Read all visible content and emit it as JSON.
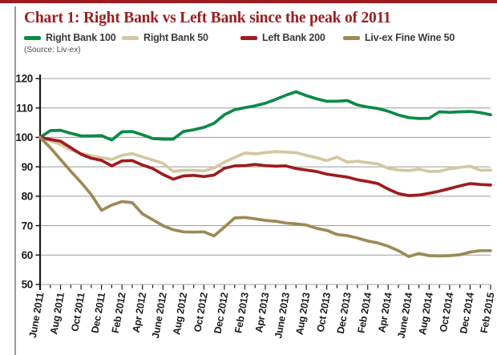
{
  "page": {
    "title_prefix": "Chart 1:",
    "title_rest": " Right Bank vs Left Bank since the peak of 2011",
    "source_note": "(Source: Liv-ex)",
    "accent_color": "#9e1b1f",
    "rule_color": "#9b9b9b",
    "background_color": "#ffffff"
  },
  "legend": {
    "items": [
      {
        "label": "Right Bank 100",
        "color": "#0b8a47"
      },
      {
        "label": "Right Bank 50",
        "color": "#d4c7a2"
      },
      {
        "label": "Left Bank 200",
        "color": "#9e1b1f"
      },
      {
        "label": "Liv-ex Fine Wine 50",
        "color": "#9c8a57"
      }
    ]
  },
  "chart_data": {
    "type": "line",
    "title": "Chart 1: Right Bank vs Left Bank since the peak of 2011",
    "xlabel": "",
    "ylabel": "",
    "ylim": [
      50,
      120
    ],
    "ytick_interval": 10,
    "y_tick_labels": [
      "120",
      "110",
      "100",
      "90",
      "80",
      "70",
      "60",
      "50"
    ],
    "grid": true,
    "legend_position": "top",
    "x_months_total": 45,
    "x_tick_every_months": 2,
    "x_tick_labels": [
      "June 2011",
      "Aug 2011",
      "Oct 2011",
      "Dec 2011",
      "Feb 2012",
      "Apr 2012",
      "June 2012",
      "Aug 2012",
      "Oct 2012",
      "Dec 2012",
      "Feb 2013",
      "Apr 2013",
      "June 2013",
      "Aug 2013",
      "Oct 2013",
      "Dec 2013",
      "Feb 2014",
      "Apr 2014",
      "June 2014",
      "Aug 2014",
      "Oct 2014",
      "Dec 2014",
      "Feb 2015"
    ],
    "grid_color": "#a6a6a6",
    "axis_color": "#1a1a1a",
    "series": [
      {
        "name": "Right Bank 100",
        "color": "#0b8a47",
        "values": [
          100,
          102.3,
          102.4,
          101.4,
          100.5,
          100.5,
          100.6,
          99.1,
          101.9,
          102.0,
          100.9,
          99.6,
          99.4,
          99.4,
          102.0,
          102.6,
          103.4,
          104.8,
          107.7,
          109.4,
          110.1,
          110.7,
          111.6,
          112.9,
          114.3,
          115.5,
          114.2,
          113.1,
          112.3,
          112.3,
          112.5,
          111.0,
          110.3,
          109.8,
          108.9,
          107.6,
          106.7,
          106.4,
          106.5,
          108.7,
          108.5,
          108.7,
          108.8,
          108.4,
          107.7
        ]
      },
      {
        "name": "Right Bank 50",
        "color": "#d4c7a2",
        "values": [
          100,
          98.8,
          97.6,
          95.7,
          94.6,
          93.7,
          93.1,
          92.5,
          93.9,
          94.5,
          93.4,
          92.3,
          91.2,
          88.4,
          88.8,
          88.8,
          88.6,
          89.6,
          91.6,
          93.2,
          94.7,
          94.4,
          94.8,
          95.2,
          95.0,
          94.8,
          93.9,
          93.1,
          92.1,
          93.3,
          91.6,
          91.9,
          91.4,
          91.0,
          89.5,
          88.9,
          88.7,
          89.2,
          88.4,
          88.5,
          89.3,
          89.8,
          90.2,
          88.8,
          88.9
        ]
      },
      {
        "name": "Left Bank 200",
        "color": "#9e1b1f",
        "values": [
          100,
          99.3,
          98.7,
          96.5,
          94.3,
          92.9,
          92.2,
          90.3,
          92.0,
          92.1,
          90.6,
          89.4,
          87.4,
          85.8,
          86.9,
          87.1,
          86.7,
          87.2,
          89.5,
          90.3,
          90.4,
          90.8,
          90.4,
          90.2,
          90.3,
          89.4,
          88.9,
          88.4,
          87.5,
          87.0,
          86.5,
          85.6,
          85.0,
          84.3,
          82.4,
          80.9,
          80.2,
          80.4,
          81.0,
          81.7,
          82.6,
          83.5,
          84.3,
          84.0,
          83.8
        ]
      },
      {
        "name": "Liv-ex Fine Wine 50",
        "color": "#9c8a57",
        "values": [
          100,
          96.5,
          92.5,
          88.5,
          84.7,
          80.5,
          75.2,
          77.0,
          78.2,
          77.8,
          74.0,
          72.0,
          70.0,
          68.6,
          67.9,
          67.8,
          67.9,
          66.5,
          69.5,
          72.6,
          72.8,
          72.3,
          71.8,
          71.5,
          70.9,
          70.6,
          70.2,
          69.1,
          68.4,
          67.0,
          66.6,
          65.8,
          64.8,
          64.1,
          63.0,
          61.5,
          59.5,
          60.5,
          59.8,
          59.7,
          59.8,
          60.1,
          61.0,
          61.5,
          61.5
        ]
      }
    ]
  }
}
